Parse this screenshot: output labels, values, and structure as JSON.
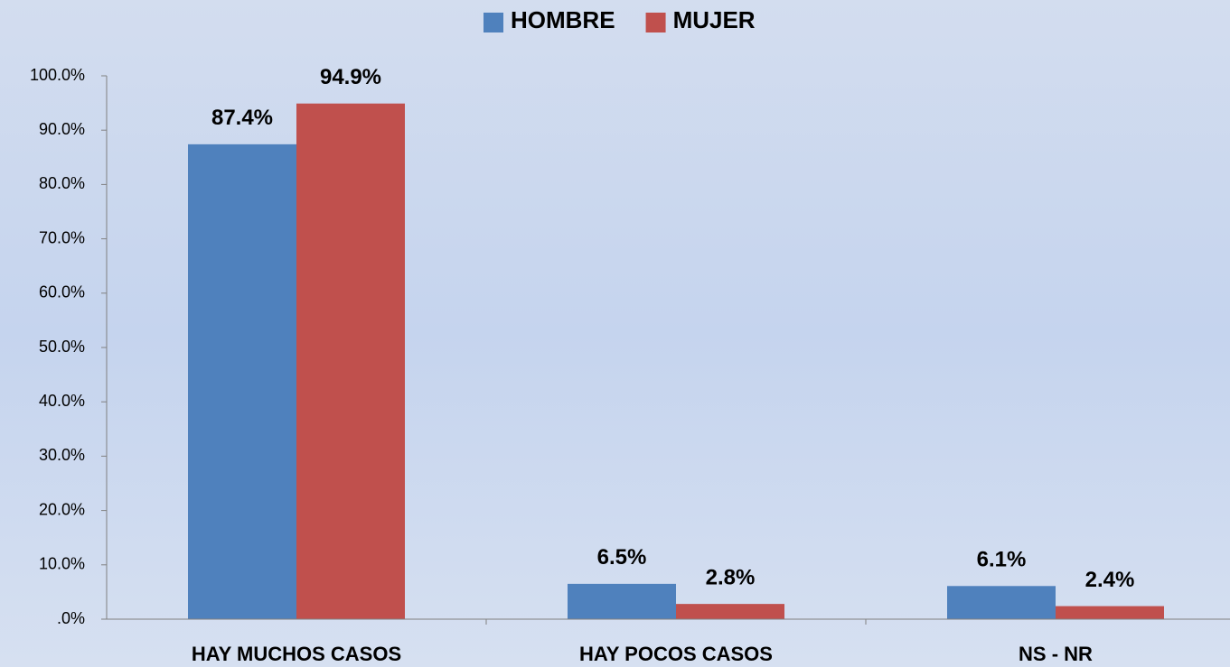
{
  "chart_data": {
    "type": "bar",
    "categories": [
      "HAY MUCHOS CASOS",
      "HAY POCOS CASOS",
      "NS - NR"
    ],
    "series": [
      {
        "name": "HOMBRE",
        "color": "#4f81bd",
        "values": [
          87.4,
          6.5,
          6.1
        ],
        "value_labels": [
          "87.4%",
          "6.5%",
          "6.1%"
        ]
      },
      {
        "name": "MUJER",
        "color": "#c0504d",
        "values": [
          94.9,
          2.8,
          2.4
        ],
        "value_labels": [
          "94.9%",
          "2.8%",
          "2.4%"
        ]
      }
    ],
    "ylim": [
      0,
      100
    ],
    "yticks": [
      {
        "value": 0,
        "label": ".0%"
      },
      {
        "value": 10,
        "label": "10.0%"
      },
      {
        "value": 20,
        "label": "20.0%"
      },
      {
        "value": 30,
        "label": "30.0%"
      },
      {
        "value": 40,
        "label": "40.0%"
      },
      {
        "value": 50,
        "label": "50.0%"
      },
      {
        "value": 60,
        "label": "60.0%"
      },
      {
        "value": 70,
        "label": "70.0%"
      },
      {
        "value": 80,
        "label": "80.0%"
      },
      {
        "value": 90,
        "label": "90.0%"
      },
      {
        "value": 100,
        "label": "100.0%"
      }
    ],
    "legend": "top",
    "grid": false
  }
}
